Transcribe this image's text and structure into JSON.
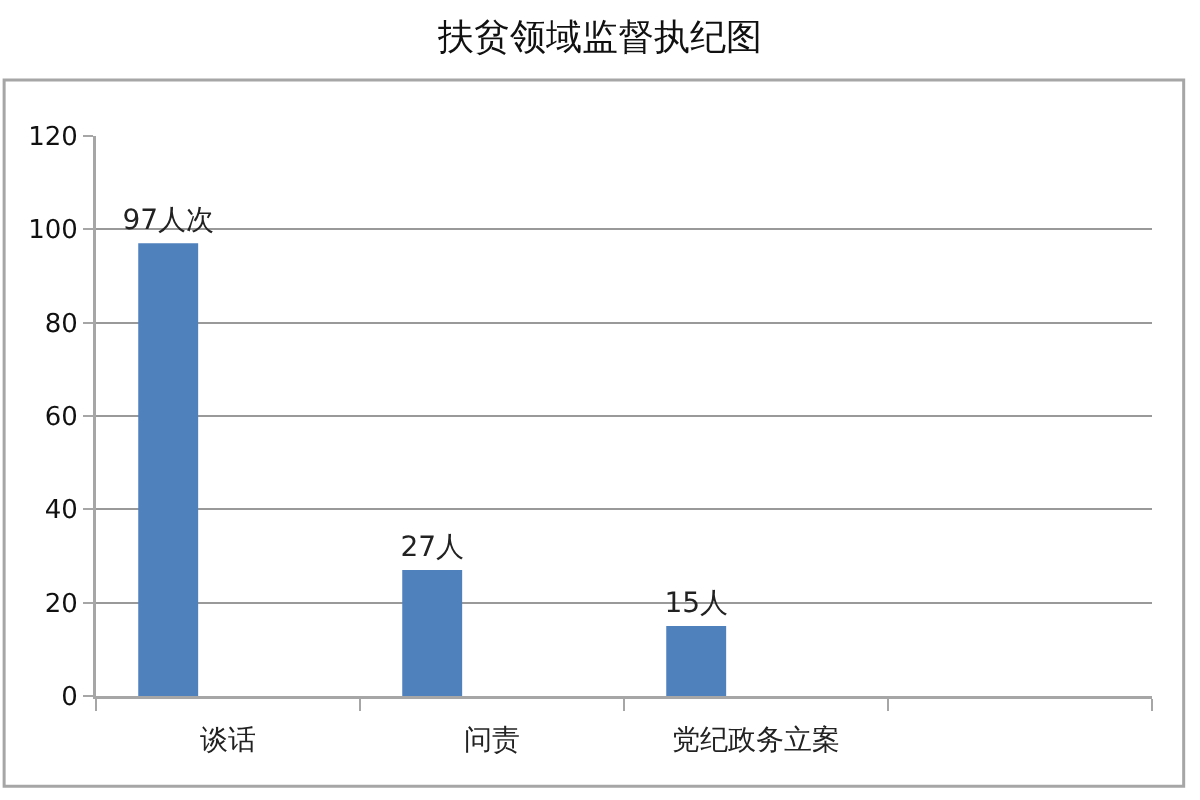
{
  "chart_data": {
    "type": "bar",
    "title": "扶贫领域监督执纪图",
    "categories": [
      "谈话",
      "问责",
      "党纪政务立案",
      null
    ],
    "values": [
      97,
      27,
      15,
      null
    ],
    "value_labels": [
      "97人次",
      "27人",
      "15人",
      null
    ],
    "color": "#4f81bd",
    "ylim": [
      0,
      120
    ],
    "yticks": [
      0,
      20,
      40,
      60,
      80,
      100,
      120
    ],
    "grid": "y"
  }
}
